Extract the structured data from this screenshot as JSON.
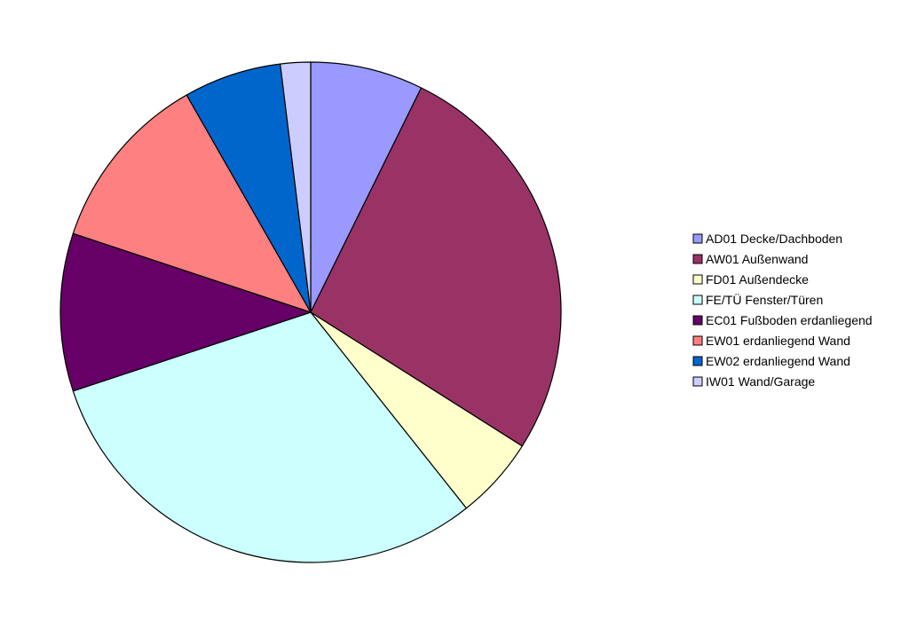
{
  "chart_data": {
    "type": "pie",
    "title": "",
    "start": "top",
    "direction": "clockwise",
    "legend_position": "right",
    "slices": [
      {
        "label": "AD01 Decke/Dachboden",
        "value": 7.5,
        "color": "#9999ff"
      },
      {
        "label": "AW01 Außenwand",
        "value": 27.5,
        "color": "#993366"
      },
      {
        "label": "FD01 Außendecke",
        "value": 5.5,
        "color": "#ffffcc"
      },
      {
        "label": "FE/TÜ Fenster/Türen",
        "value": 31.5,
        "color": "#ccffff"
      },
      {
        "label": "EC01 Fußboden erdanliegend",
        "value": 10.5,
        "color": "#660066"
      },
      {
        "label": "EW01 erdanliegend Wand",
        "value": 12.0,
        "color": "#ff8080"
      },
      {
        "label": "EW02 erdanliegend Wand",
        "value": 6.5,
        "color": "#0066cc"
      },
      {
        "label": "IW01 Wand/Garage",
        "value": 2.0,
        "color": "#ccccff"
      }
    ]
  }
}
